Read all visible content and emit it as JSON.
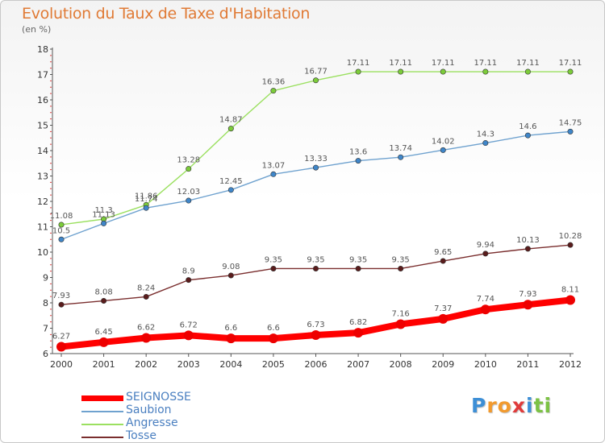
{
  "chart_data": {
    "type": "line",
    "title": "Evolution du Taux de Taxe d'Habitation",
    "unit_label": "(en %)",
    "x": [
      "2000",
      "2001",
      "2002",
      "2003",
      "2004",
      "2005",
      "2006",
      "2007",
      "2008",
      "2009",
      "2010",
      "2011",
      "2012"
    ],
    "ylim": [
      6,
      18
    ],
    "yticks": [
      6,
      7,
      8,
      9,
      10,
      11,
      12,
      13,
      14,
      15,
      16,
      17,
      18
    ],
    "grid": false,
    "legend_position": "bottom-left",
    "series": [
      {
        "name": "SEIGNOSSE",
        "color": "#ff0000",
        "marker_color": "#ee0000",
        "bold": true,
        "values": [
          6.27,
          6.45,
          6.62,
          6.72,
          6.6,
          6.6,
          6.73,
          6.82,
          7.16,
          7.37,
          7.74,
          7.93,
          8.11
        ],
        "labels": [
          "6.27",
          "6.45",
          "6.62",
          "6.72",
          "6.6",
          "6.6",
          "6.73",
          "6.82",
          "7.16",
          "7.37",
          "7.74",
          "7.93",
          "8.11"
        ]
      },
      {
        "name": "Saubion",
        "color": "#6fa2cf",
        "marker_color": "#3f86c9",
        "bold": false,
        "values": [
          10.5,
          11.13,
          11.74,
          12.03,
          12.45,
          13.07,
          13.33,
          13.6,
          13.74,
          14.02,
          14.3,
          14.6,
          14.75
        ],
        "labels": [
          "10.5",
          "11.13",
          "11.74",
          "12.03",
          "12.45",
          "13.07",
          "13.33",
          "13.6",
          "13.74",
          "14.02",
          "14.3",
          "14.6",
          "14.75"
        ]
      },
      {
        "name": "Angresse",
        "color": "#9be060",
        "marker_color": "#7ccc3a",
        "bold": false,
        "values": [
          11.08,
          11.3,
          11.86,
          13.28,
          14.87,
          16.36,
          16.77,
          17.11,
          17.11,
          17.11,
          17.11,
          17.11,
          17.11
        ],
        "labels": [
          "11.08",
          "11.3",
          "11.86",
          "13.28",
          "14.87",
          "16.36",
          "16.77",
          "17.11",
          "17.11",
          "17.11",
          "17.11",
          "17.11",
          "17.11"
        ]
      },
      {
        "name": "Tosse",
        "color": "#7a2e2e",
        "marker_color": "#5a1c1c",
        "bold": false,
        "values": [
          7.93,
          8.08,
          8.24,
          8.9,
          9.08,
          9.35,
          9.35,
          9.35,
          9.35,
          9.65,
          9.94,
          10.13,
          10.28
        ],
        "labels": [
          "7.93",
          "8.08",
          "8.24",
          "8.9",
          "9.08",
          "9.35",
          "9.35",
          "9.35",
          "9.35",
          "9.65",
          "9.94",
          "10.13",
          "10.28"
        ]
      }
    ]
  },
  "logo": {
    "letters": [
      "P",
      "r",
      "o",
      "x",
      "i",
      "t",
      "i"
    ],
    "colors": [
      "#3d8fd6",
      "#f29a2e",
      "#f29a2e",
      "#e03b3b",
      "#3d8fd6",
      "#7cc244",
      "#7cc244"
    ]
  }
}
